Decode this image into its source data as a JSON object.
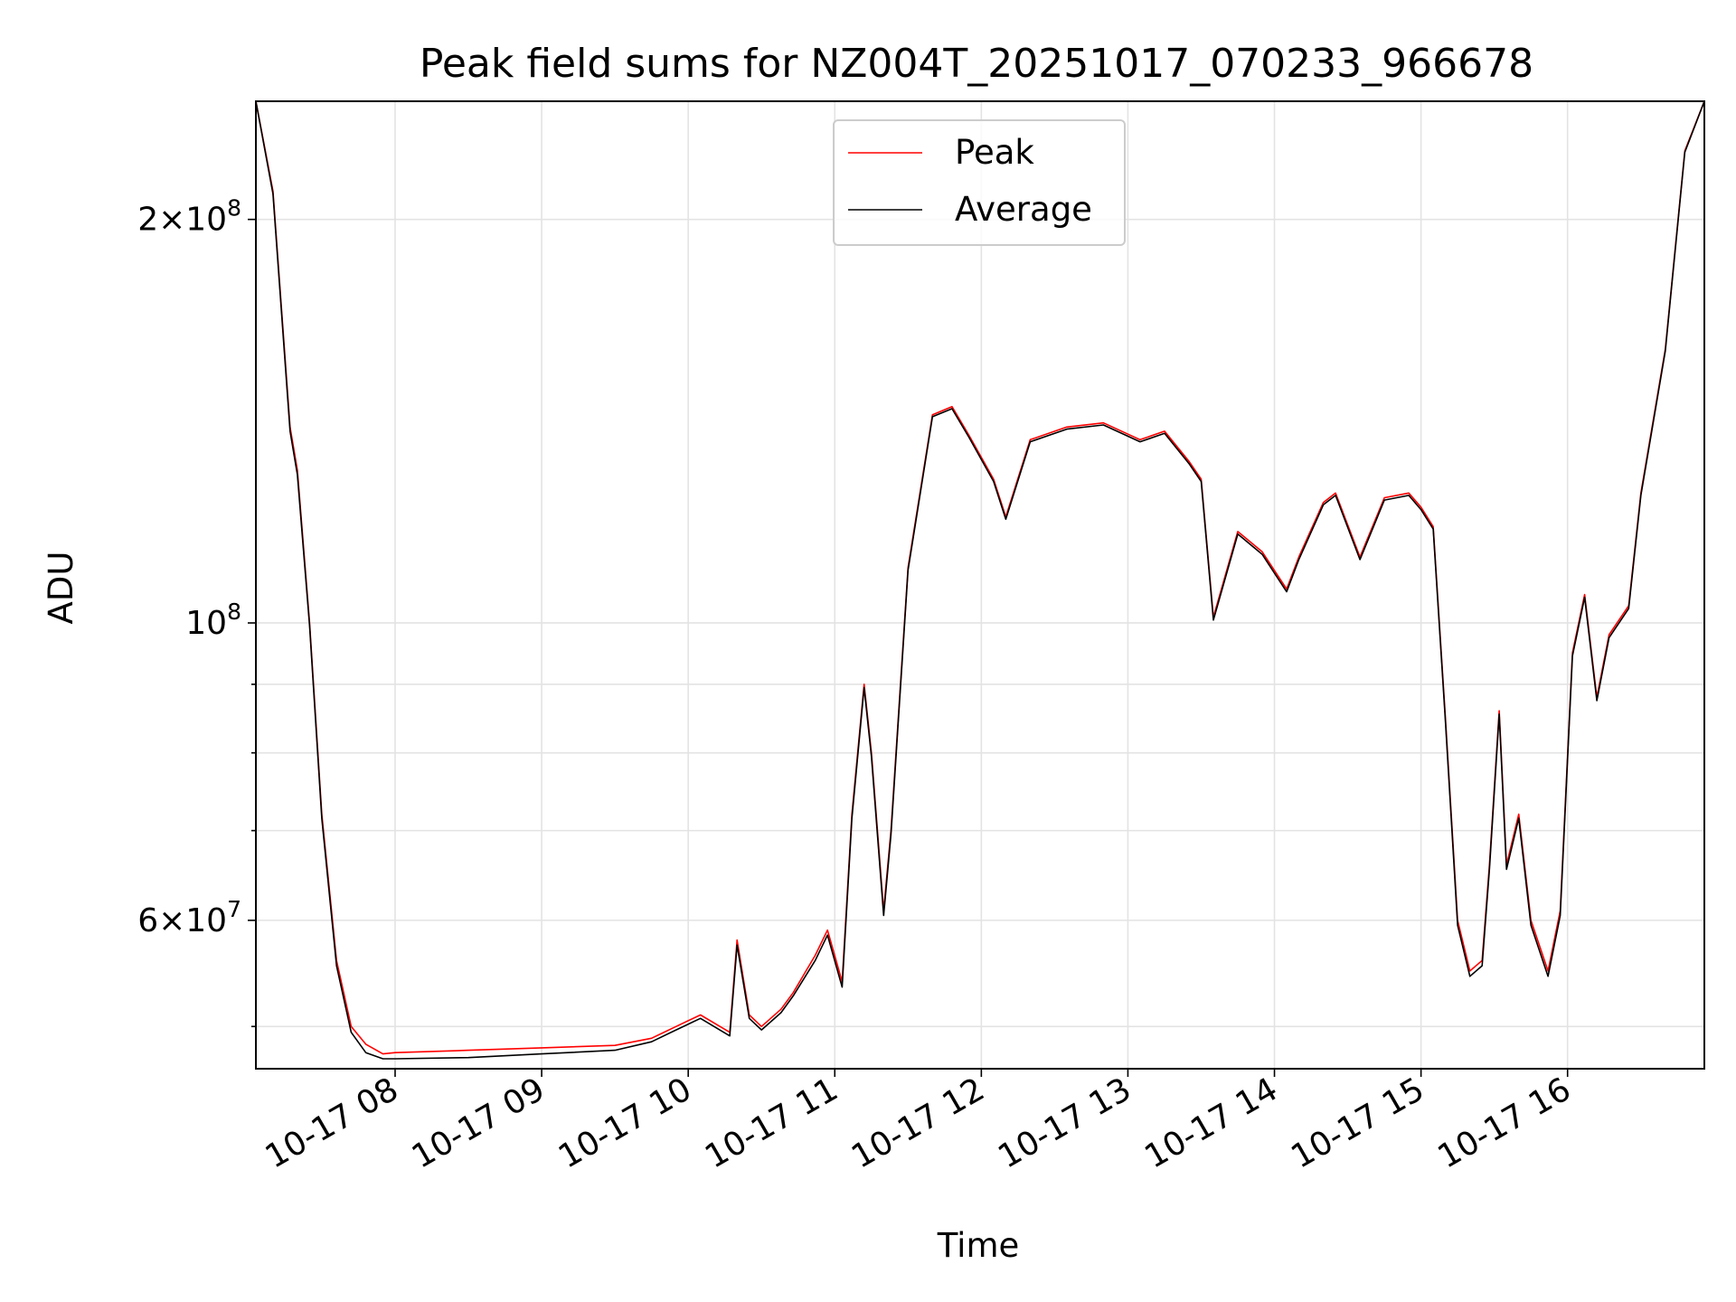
{
  "chart_data": {
    "type": "line",
    "title": "Peak field sums for NZ004T_20251017_070233_966678",
    "xlabel": "Time",
    "ylabel": "ADU",
    "x_axis": "datetime",
    "y_scale": "log",
    "grid": true,
    "legend_position": "top-center",
    "xlim": [
      "2025-10-17 07:03",
      "2025-10-17 16:56"
    ],
    "ylim": [
      46500000,
      245000000
    ],
    "x_ticks": [
      {
        "value": "2025-10-17 08:00",
        "label": "10-17 08"
      },
      {
        "value": "2025-10-17 09:00",
        "label": "10-17 09"
      },
      {
        "value": "2025-10-17 10:00",
        "label": "10-17 10"
      },
      {
        "value": "2025-10-17 11:00",
        "label": "10-17 11"
      },
      {
        "value": "2025-10-17 12:00",
        "label": "10-17 12"
      },
      {
        "value": "2025-10-17 13:00",
        "label": "10-17 13"
      },
      {
        "value": "2025-10-17 14:00",
        "label": "10-17 14"
      },
      {
        "value": "2025-10-17 15:00",
        "label": "10-17 15"
      },
      {
        "value": "2025-10-17 16:00",
        "label": "10-17 16"
      }
    ],
    "y_major_ticks": [
      {
        "value": 60000000,
        "mantissa": "6",
        "base": "10",
        "exp": "7"
      },
      {
        "value": 100000000,
        "mantissa": "",
        "base": "10",
        "exp": "8"
      },
      {
        "value": 200000000,
        "mantissa": "2",
        "base": "10",
        "exp": "8"
      }
    ],
    "y_minor_ticks": [
      50000000,
      70000000,
      80000000,
      90000000
    ],
    "series": [
      {
        "name": "Peak",
        "color": "#ff0000",
        "x": [
          "2025-10-17 07:03",
          "2025-10-17 07:10",
          "2025-10-17 07:17",
          "2025-10-17 07:20",
          "2025-10-17 07:25",
          "2025-10-17 07:30",
          "2025-10-17 07:36",
          "2025-10-17 07:42",
          "2025-10-17 07:48",
          "2025-10-17 07:55",
          "2025-10-17 08:00",
          "2025-10-17 08:30",
          "2025-10-17 09:00",
          "2025-10-17 09:30",
          "2025-10-17 09:45",
          "2025-10-17 09:55",
          "2025-10-17 10:05",
          "2025-10-17 10:17",
          "2025-10-17 10:20",
          "2025-10-17 10:25",
          "2025-10-17 10:30",
          "2025-10-17 10:38",
          "2025-10-17 10:43",
          "2025-10-17 10:52",
          "2025-10-17 10:57",
          "2025-10-17 11:03",
          "2025-10-17 11:07",
          "2025-10-17 11:12",
          "2025-10-17 11:15",
          "2025-10-17 11:20",
          "2025-10-17 11:23",
          "2025-10-17 11:30",
          "2025-10-17 11:40",
          "2025-10-17 11:48",
          "2025-10-17 11:55",
          "2025-10-17 12:05",
          "2025-10-17 12:10",
          "2025-10-17 12:20",
          "2025-10-17 12:35",
          "2025-10-17 12:50",
          "2025-10-17 13:05",
          "2025-10-17 13:15",
          "2025-10-17 13:25",
          "2025-10-17 13:30",
          "2025-10-17 13:35",
          "2025-10-17 13:45",
          "2025-10-17 13:55",
          "2025-10-17 14:05",
          "2025-10-17 14:10",
          "2025-10-17 14:20",
          "2025-10-17 14:25",
          "2025-10-17 14:35",
          "2025-10-17 14:45",
          "2025-10-17 14:55",
          "2025-10-17 15:00",
          "2025-10-17 15:05",
          "2025-10-17 15:10",
          "2025-10-17 15:15",
          "2025-10-17 15:20",
          "2025-10-17 15:25",
          "2025-10-17 15:28",
          "2025-10-17 15:32",
          "2025-10-17 15:35",
          "2025-10-17 15:40",
          "2025-10-17 15:45",
          "2025-10-17 15:52",
          "2025-10-17 15:57",
          "2025-10-17 16:02",
          "2025-10-17 16:07",
          "2025-10-17 16:12",
          "2025-10-17 16:17",
          "2025-10-17 16:25",
          "2025-10-17 16:30",
          "2025-10-17 16:40",
          "2025-10-17 16:48",
          "2025-10-17 16:56"
        ],
        "y": [
          245000000,
          210000000,
          140000000,
          130000000,
          100000000,
          72000000,
          56000000,
          50000000,
          48500000,
          47700000,
          47800000,
          48000000,
          48200000,
          48400000,
          49000000,
          50000000,
          51000000,
          49500000,
          58000000,
          51000000,
          50000000,
          51500000,
          53000000,
          56500000,
          59000000,
          54000000,
          72000000,
          90000000,
          80000000,
          61000000,
          70000000,
          110000000,
          143000000,
          145000000,
          138000000,
          128000000,
          120000000,
          137000000,
          140000000,
          141000000,
          137000000,
          139000000,
          132000000,
          128000000,
          101000000,
          117000000,
          113000000,
          106000000,
          112000000,
          123000000,
          125000000,
          112000000,
          124000000,
          125000000,
          122000000,
          118000000,
          85000000,
          60000000,
          55000000,
          56000000,
          66000000,
          86000000,
          66000000,
          72000000,
          60000000,
          55000000,
          61000000,
          95000000,
          105000000,
          88000000,
          98000000,
          103000000,
          125000000,
          160000000,
          225000000,
          245000000
        ]
      },
      {
        "name": "Average",
        "color": "#000000",
        "x": [
          "2025-10-17 07:03",
          "2025-10-17 07:10",
          "2025-10-17 07:17",
          "2025-10-17 07:20",
          "2025-10-17 07:25",
          "2025-10-17 07:30",
          "2025-10-17 07:36",
          "2025-10-17 07:42",
          "2025-10-17 07:48",
          "2025-10-17 07:55",
          "2025-10-17 08:00",
          "2025-10-17 08:30",
          "2025-10-17 09:00",
          "2025-10-17 09:30",
          "2025-10-17 09:45",
          "2025-10-17 09:55",
          "2025-10-17 10:05",
          "2025-10-17 10:17",
          "2025-10-17 10:20",
          "2025-10-17 10:25",
          "2025-10-17 10:30",
          "2025-10-17 10:38",
          "2025-10-17 10:43",
          "2025-10-17 10:52",
          "2025-10-17 10:57",
          "2025-10-17 11:03",
          "2025-10-17 11:07",
          "2025-10-17 11:12",
          "2025-10-17 11:15",
          "2025-10-17 11:20",
          "2025-10-17 11:23",
          "2025-10-17 11:30",
          "2025-10-17 11:40",
          "2025-10-17 11:48",
          "2025-10-17 11:55",
          "2025-10-17 12:05",
          "2025-10-17 12:10",
          "2025-10-17 12:20",
          "2025-10-17 12:35",
          "2025-10-17 12:50",
          "2025-10-17 13:05",
          "2025-10-17 13:15",
          "2025-10-17 13:25",
          "2025-10-17 13:30",
          "2025-10-17 13:35",
          "2025-10-17 13:45",
          "2025-10-17 13:55",
          "2025-10-17 14:05",
          "2025-10-17 14:10",
          "2025-10-17 14:20",
          "2025-10-17 14:25",
          "2025-10-17 14:35",
          "2025-10-17 14:45",
          "2025-10-17 14:55",
          "2025-10-17 15:00",
          "2025-10-17 15:05",
          "2025-10-17 15:10",
          "2025-10-17 15:15",
          "2025-10-17 15:20",
          "2025-10-17 15:25",
          "2025-10-17 15:28",
          "2025-10-17 15:32",
          "2025-10-17 15:35",
          "2025-10-17 15:40",
          "2025-10-17 15:45",
          "2025-10-17 15:52",
          "2025-10-17 15:57",
          "2025-10-17 16:02",
          "2025-10-17 16:07",
          "2025-10-17 16:12",
          "2025-10-17 16:17",
          "2025-10-17 16:25",
          "2025-10-17 16:30",
          "2025-10-17 16:40",
          "2025-10-17 16:48",
          "2025-10-17 16:56"
        ],
        "y": [
          245000000,
          209000000,
          139000000,
          129000000,
          99500000,
          71500000,
          55500000,
          49500000,
          47800000,
          47300000,
          47300000,
          47400000,
          47700000,
          48000000,
          48700000,
          49700000,
          50700000,
          49200000,
          57500000,
          50700000,
          49700000,
          51200000,
          52700000,
          56000000,
          58500000,
          53500000,
          71500000,
          89500000,
          79500000,
          60500000,
          69500000,
          109500000,
          142500000,
          144500000,
          137500000,
          127500000,
          119500000,
          136500000,
          139500000,
          140500000,
          136500000,
          138500000,
          131500000,
          127500000,
          100500000,
          116500000,
          112500000,
          105500000,
          111500000,
          122500000,
          124500000,
          111500000,
          123500000,
          124500000,
          121500000,
          117500000,
          84500000,
          59500000,
          54500000,
          55500000,
          65500000,
          85500000,
          65500000,
          71500000,
          59500000,
          54500000,
          60500000,
          94500000,
          104500000,
          87500000,
          97500000,
          102500000,
          124500000,
          159500000,
          224500000,
          245000000
        ]
      }
    ]
  }
}
